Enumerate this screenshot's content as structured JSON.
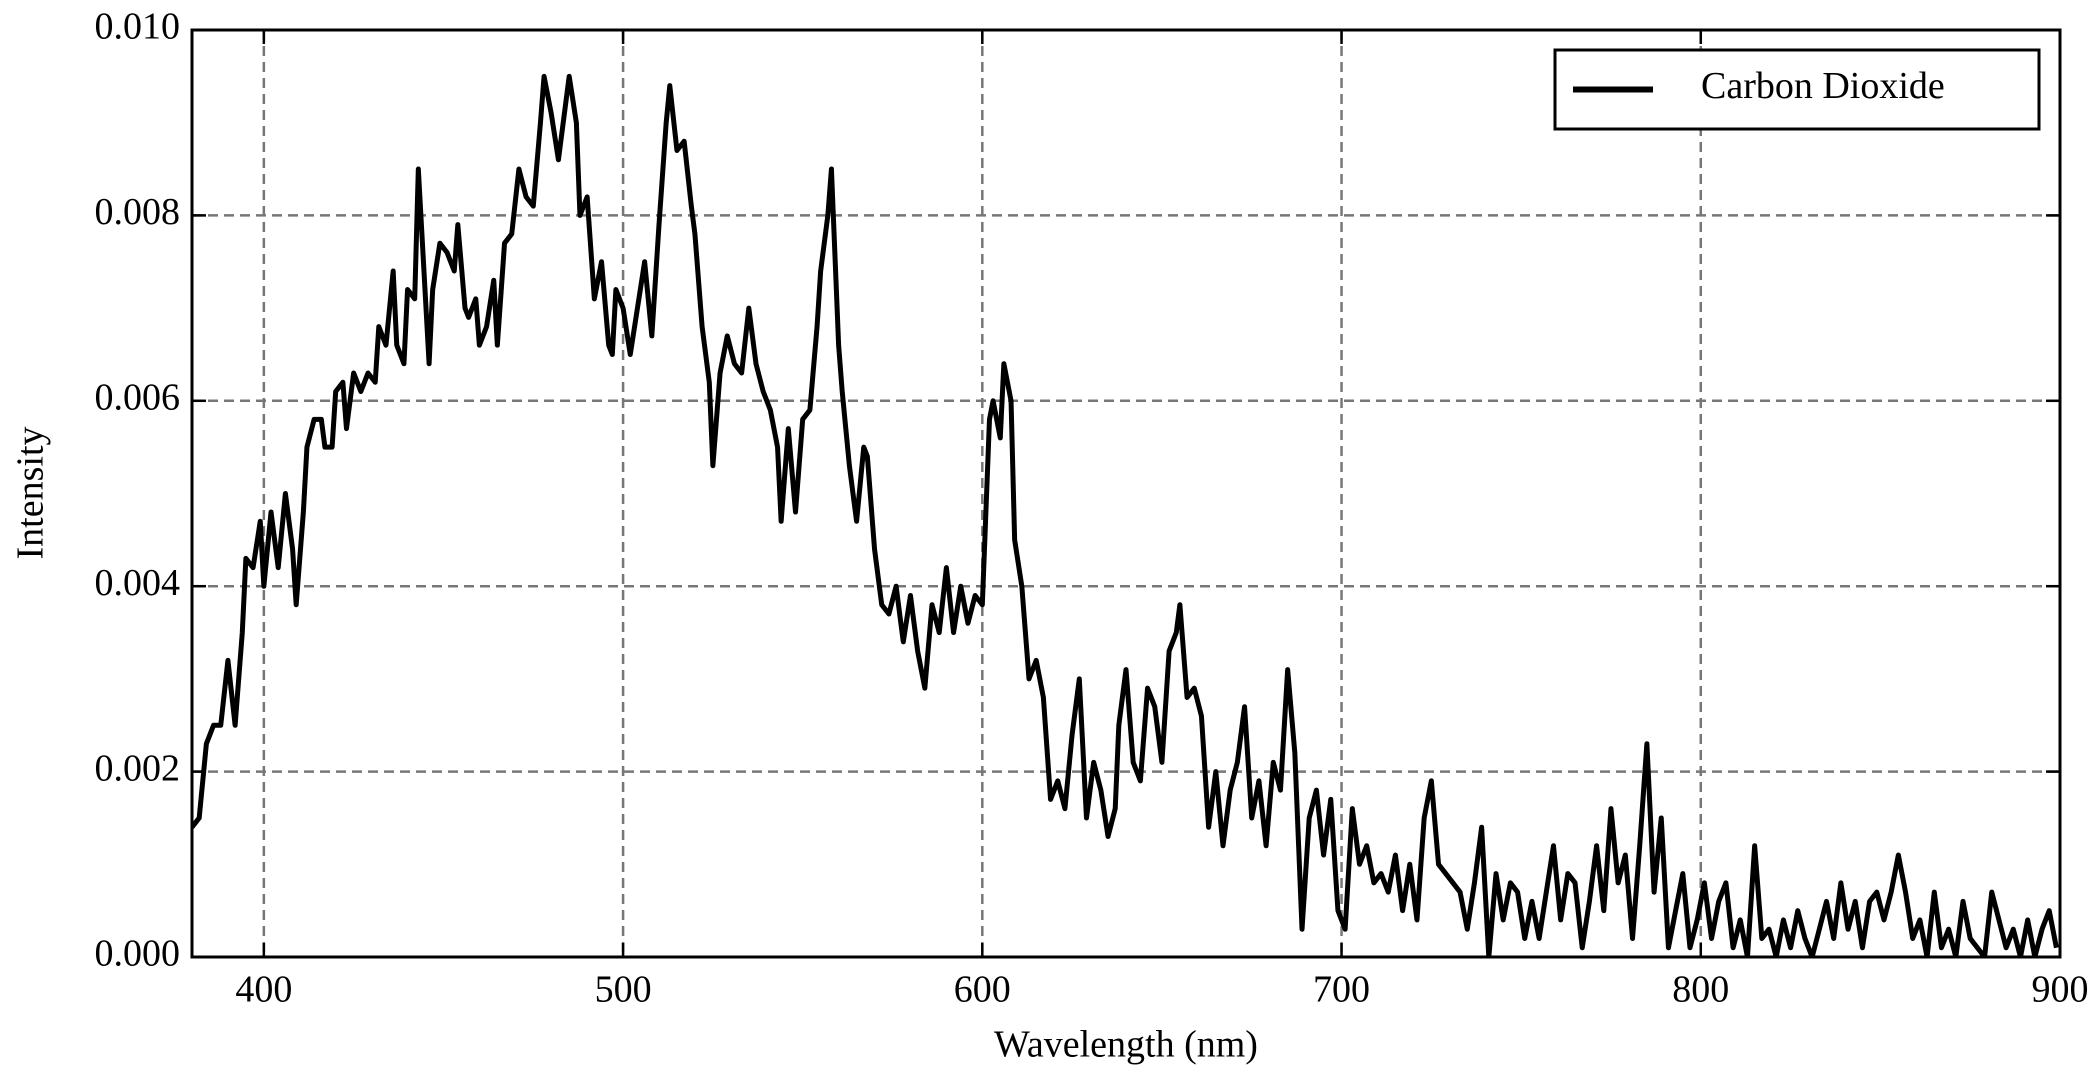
{
  "chart_data": {
    "type": "line",
    "x_label": "Wavelength (nm)",
    "y_label": "Intensity",
    "x": [
      380,
      382,
      384,
      386,
      388,
      390,
      392,
      394,
      395,
      397,
      399,
      400,
      402,
      404,
      406,
      408,
      409,
      411,
      412,
      414,
      416,
      417,
      419,
      420,
      422,
      423,
      425,
      427,
      429,
      431,
      432,
      434,
      436,
      437,
      439,
      440,
      442,
      443,
      444,
      446,
      447,
      449,
      451,
      453,
      454,
      456,
      457,
      459,
      460,
      462,
      464,
      465,
      467,
      469,
      471,
      473,
      475,
      477,
      478,
      480,
      482,
      484,
      485,
      487,
      488,
      490,
      492,
      494,
      496,
      497,
      498,
      500,
      502,
      504,
      506,
      508,
      510,
      512,
      513,
      515,
      517,
      519,
      520,
      522,
      524,
      525,
      527,
      529,
      531,
      533,
      535,
      537,
      539,
      541,
      543,
      544,
      546,
      548,
      550,
      552,
      554,
      555,
      557,
      558,
      560,
      561,
      563,
      565,
      567,
      568,
      570,
      572,
      574,
      576,
      578,
      580,
      582,
      584,
      586,
      588,
      590,
      592,
      594,
      596,
      598,
      600,
      602,
      603,
      605,
      606,
      608,
      609,
      611,
      613,
      615,
      617,
      619,
      621,
      623,
      625,
      627,
      629,
      631,
      633,
      635,
      637,
      638,
      640,
      642,
      644,
      646,
      648,
      650,
      652,
      654,
      655,
      657,
      659,
      661,
      663,
      665,
      667,
      669,
      671,
      673,
      675,
      677,
      679,
      681,
      683,
      685,
      687,
      689,
      691,
      693,
      695,
      697,
      699,
      701,
      703,
      705,
      707,
      709,
      711,
      713,
      715,
      717,
      719,
      721,
      723,
      725,
      727,
      729,
      731,
      733,
      735,
      737,
      739,
      741,
      743,
      745,
      747,
      749,
      751,
      753,
      755,
      757,
      759,
      761,
      763,
      765,
      767,
      769,
      771,
      773,
      775,
      777,
      779,
      781,
      783,
      785,
      787,
      789,
      791,
      793,
      795,
      797,
      799,
      801,
      803,
      805,
      807,
      809,
      811,
      813,
      815,
      817,
      819,
      821,
      823,
      825,
      827,
      829,
      831,
      833,
      835,
      837,
      839,
      841,
      843,
      845,
      847,
      849,
      851,
      853,
      855,
      857,
      859,
      861,
      863,
      865,
      867,
      869,
      871,
      873,
      875,
      877,
      879,
      881,
      883,
      885,
      887,
      889,
      891,
      893,
      895,
      897,
      899
    ],
    "series": [
      {
        "name": "Carbon Dioxide",
        "color": "#000000",
        "values": [
          0.0014,
          0.0015,
          0.0023,
          0.0025,
          0.0025,
          0.0032,
          0.0025,
          0.0035,
          0.0043,
          0.0042,
          0.0047,
          0.004,
          0.0048,
          0.0042,
          0.005,
          0.0044,
          0.0038,
          0.0048,
          0.0055,
          0.0058,
          0.0058,
          0.0055,
          0.0055,
          0.0061,
          0.0062,
          0.0057,
          0.0063,
          0.0061,
          0.0063,
          0.0062,
          0.0068,
          0.0066,
          0.0074,
          0.0066,
          0.0064,
          0.0072,
          0.0071,
          0.0085,
          0.0078,
          0.0064,
          0.0072,
          0.0077,
          0.0076,
          0.0074,
          0.0079,
          0.007,
          0.0069,
          0.0071,
          0.0066,
          0.0068,
          0.0073,
          0.0066,
          0.0077,
          0.0078,
          0.0085,
          0.0082,
          0.0081,
          0.009,
          0.0095,
          0.0091,
          0.0086,
          0.0092,
          0.0095,
          0.009,
          0.008,
          0.0082,
          0.0071,
          0.0075,
          0.0066,
          0.0065,
          0.0072,
          0.007,
          0.0065,
          0.007,
          0.0075,
          0.0067,
          0.0079,
          0.009,
          0.0094,
          0.0087,
          0.0088,
          0.0081,
          0.0078,
          0.0068,
          0.0062,
          0.0053,
          0.0063,
          0.0067,
          0.0064,
          0.0063,
          0.007,
          0.0064,
          0.0061,
          0.0059,
          0.0055,
          0.0047,
          0.0057,
          0.0048,
          0.0058,
          0.0059,
          0.0068,
          0.0074,
          0.008,
          0.0085,
          0.0066,
          0.0061,
          0.0053,
          0.0047,
          0.0055,
          0.0054,
          0.0044,
          0.0038,
          0.0037,
          0.004,
          0.0034,
          0.0039,
          0.0033,
          0.0029,
          0.0038,
          0.0035,
          0.0042,
          0.0035,
          0.004,
          0.0036,
          0.0039,
          0.0038,
          0.0058,
          0.006,
          0.0056,
          0.0064,
          0.006,
          0.0045,
          0.004,
          0.003,
          0.0032,
          0.0028,
          0.0017,
          0.0019,
          0.0016,
          0.0024,
          0.003,
          0.0015,
          0.0021,
          0.0018,
          0.0013,
          0.0016,
          0.0025,
          0.0031,
          0.0021,
          0.0019,
          0.0029,
          0.0027,
          0.0021,
          0.0033,
          0.0035,
          0.0038,
          0.0028,
          0.0029,
          0.0026,
          0.0014,
          0.002,
          0.0012,
          0.0018,
          0.0021,
          0.0027,
          0.0015,
          0.0019,
          0.0012,
          0.0021,
          0.0018,
          0.0031,
          0.0022,
          0.0003,
          0.0015,
          0.0018,
          0.0011,
          0.0017,
          0.0005,
          0.0003,
          0.0016,
          0.001,
          0.0012,
          0.0008,
          0.0009,
          0.0007,
          0.0011,
          0.0005,
          0.001,
          0.0004,
          0.0015,
          0.0019,
          0.001,
          0.0009,
          0.0008,
          0.0007,
          0.0003,
          0.0008,
          0.0014,
          0.0,
          0.0009,
          0.0004,
          0.0008,
          0.0007,
          0.0002,
          0.0006,
          0.0002,
          0.0007,
          0.0012,
          0.0004,
          0.0009,
          0.0008,
          0.0001,
          0.0006,
          0.0012,
          0.0005,
          0.0016,
          0.0008,
          0.0011,
          0.0002,
          0.0012,
          0.0023,
          0.0007,
          0.0015,
          0.0001,
          0.0005,
          0.0009,
          0.0001,
          0.0004,
          0.0008,
          0.0002,
          0.0006,
          0.0008,
          0.0001,
          0.0004,
          0.0,
          0.0012,
          0.0002,
          0.0003,
          0.0,
          0.0004,
          0.0001,
          0.0005,
          0.0002,
          0.0,
          0.0003,
          0.0006,
          0.0002,
          0.0008,
          0.0003,
          0.0006,
          0.0001,
          0.0006,
          0.0007,
          0.0004,
          0.0007,
          0.0011,
          0.0007,
          0.0002,
          0.0004,
          0.0,
          0.0007,
          0.0001,
          0.0003,
          0.0,
          0.0006,
          0.0002,
          0.0001,
          0.0,
          0.0007,
          0.0004,
          0.0001,
          0.0003,
          0.0,
          0.0004,
          0.0,
          0.0003,
          0.0005,
          0.0001
        ]
      }
    ],
    "xlim": [
      380,
      900
    ],
    "ylim": [
      0,
      0.01
    ],
    "xticks": [
      400,
      500,
      600,
      700,
      800,
      900
    ],
    "yticks": [
      {
        "value": 0,
        "label": "0.000"
      },
      {
        "value": 0.002,
        "label": "0.002"
      },
      {
        "value": 0.004,
        "label": "0.004"
      },
      {
        "value": 0.006,
        "label": "0.006"
      },
      {
        "value": 0.008,
        "label": "0.008"
      },
      {
        "value": 0.01,
        "label": "0.010"
      }
    ],
    "grid": true,
    "legend": "upper right"
  }
}
